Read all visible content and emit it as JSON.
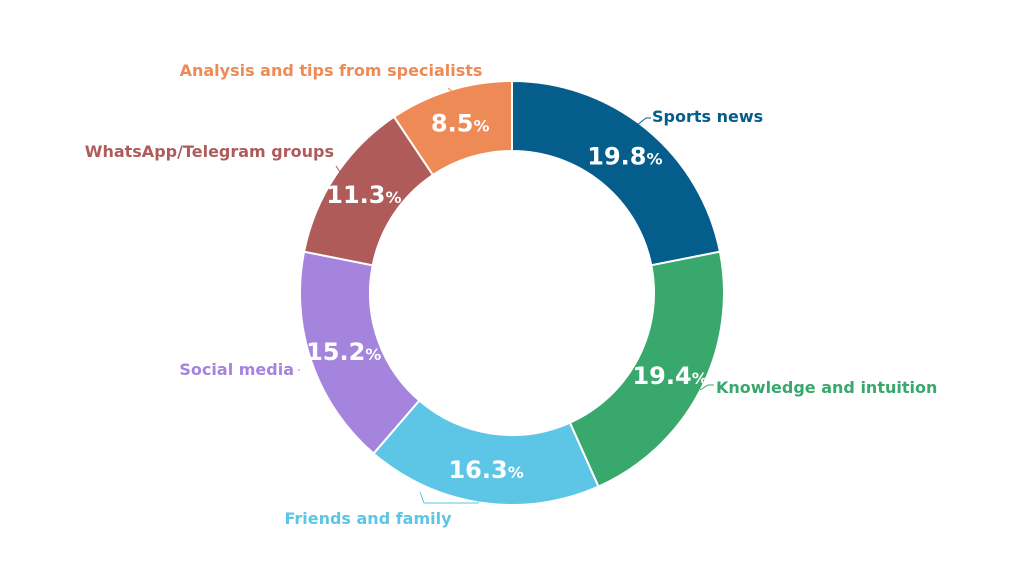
{
  "chart_data": {
    "type": "pie",
    "donut": true,
    "title": "",
    "slices": [
      {
        "name": "Sports news",
        "value": 19.8,
        "value_label": "19.8",
        "unit": "%",
        "color": "#045D8A"
      },
      {
        "name": "Knowledge and intuition",
        "value": 19.4,
        "value_label": "19.4",
        "unit": "%",
        "color": "#38A86D"
      },
      {
        "name": "Friends and family",
        "value": 16.3,
        "value_label": "16.3",
        "unit": "%",
        "color": "#5DC5E5"
      },
      {
        "name": "Social media",
        "value": 15.2,
        "value_label": "15.2",
        "unit": "%",
        "color": "#A484DC"
      },
      {
        "name": "WhatsApp/Telegram groups",
        "value": 11.3,
        "value_label": "11.3",
        "unit": "%",
        "color": "#AE5B5A"
      },
      {
        "name": "Analysis and tips from specialists",
        "value": 8.5,
        "value_label": "8.5",
        "unit": "%",
        "color": "#EE8A55"
      }
    ],
    "legend": "none",
    "labels": "outside with leader lines"
  }
}
